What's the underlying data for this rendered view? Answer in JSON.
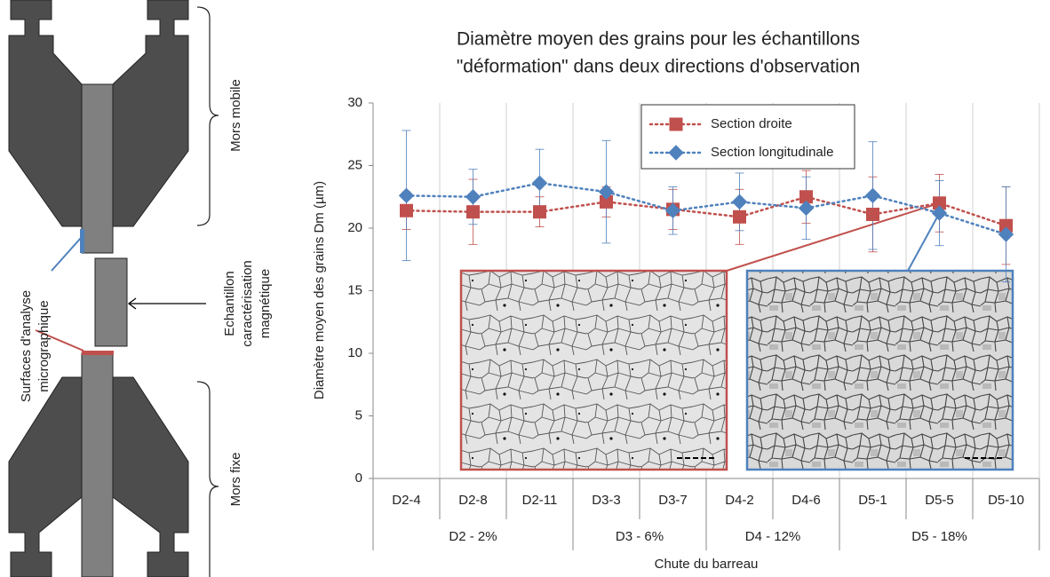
{
  "chart_data": {
    "type": "line",
    "title": [
      "Diamètre moyen des grains pour les échantillons",
      "\"déformation\" dans deux directions d'observation"
    ],
    "y_label": "Diamètre moyen des grains Dm (µm)",
    "x_label": "Chute du barreau",
    "categories": [
      "D2-4",
      "D2-8",
      "D2-11",
      "D3-3",
      "D3-7",
      "D4-2",
      "D4-6",
      "D5-1",
      "D5-5",
      "D5-10"
    ],
    "groups": [
      {
        "name": "D2 - 2%",
        "categories": [
          "D2-4",
          "D2-8",
          "D2-11"
        ]
      },
      {
        "name": "D3 - 6%",
        "categories": [
          "D3-3",
          "D3-7"
        ]
      },
      {
        "name": "D4 - 12%",
        "categories": [
          "D4-2",
          "D4-6"
        ]
      },
      {
        "name": "D5 - 18%",
        "categories": [
          "D5-1",
          "D5-5",
          "D5-10"
        ]
      }
    ],
    "series": [
      {
        "name": "Section droite",
        "color": "#c0504d",
        "marker": "square",
        "values": [
          21.4,
          21.3,
          21.3,
          22.1,
          21.5,
          20.9,
          22.5,
          21.1,
          22.0,
          20.2
        ],
        "errors": [
          1.5,
          2.6,
          1.2,
          1.2,
          1.6,
          2.2,
          2.1,
          3.0,
          2.3,
          3.1
        ]
      },
      {
        "name": "Section longitudinale",
        "color": "#4f81bd",
        "marker": "diamond",
        "values": [
          22.6,
          22.5,
          23.6,
          22.9,
          21.4,
          22.1,
          21.6,
          22.6,
          21.2,
          19.5
        ],
        "errors": [
          5.2,
          2.2,
          2.7,
          4.1,
          1.9,
          2.3,
          2.5,
          4.3,
          2.6,
          3.8
        ]
      }
    ],
    "ylim": [
      0,
      30
    ],
    "yticks": [
      0,
      5,
      10,
      15,
      20,
      25,
      30
    ],
    "grid": "x"
  },
  "diagram": {
    "mobile_jaw": "Mors mobile",
    "fixed_jaw": "Mors fixe",
    "sample": [
      "Echantillon",
      "caractérisation",
      "magnétique"
    ],
    "surfaces": [
      "Surfaces d'analyse",
      "micrographique"
    ]
  }
}
